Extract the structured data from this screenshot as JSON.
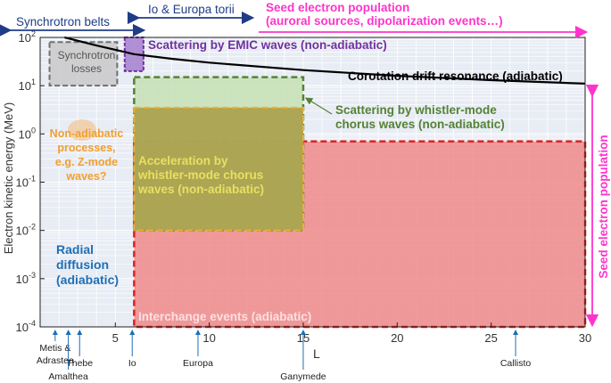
{
  "chart_data": {
    "type": "area",
    "x_axis": {
      "label": "L",
      "ticks": [
        "5",
        "10",
        "15",
        "20",
        "25",
        "30"
      ],
      "range": [
        1,
        30
      ]
    },
    "y_axis": {
      "label": "Electron kinetic energy (MeV)",
      "scale": "log",
      "ticks": [
        "10^{-4}",
        "10^{-3}",
        "10^{-2}",
        "10^{-1}",
        "10^{0}",
        "10^{1}",
        "10^{2}"
      ],
      "range": [
        0.0001,
        100
      ]
    },
    "grid": true,
    "top_annotations": {
      "synchrotron_belts": "Synchrotron belts",
      "io_europa_torii": "Io & Europa torii",
      "seed_population_line1": "Seed electron population",
      "seed_population_line2": "(auroral sources, dipolarization events…)"
    },
    "side_annotation": "Seed electron population",
    "regions": [
      {
        "name": "synchrotron-losses",
        "label_line1": "Synchrotron",
        "label_line2": "losses",
        "L_range": [
          1.5,
          5.1
        ],
        "E_range": [
          10,
          80
        ],
        "color": "#c9c9c9",
        "border": "#707070"
      },
      {
        "name": "emic-scattering",
        "label": "Scattering by EMIC waves (non-adiabatic)",
        "L_range": [
          5.5,
          6.5
        ],
        "E_range": [
          20,
          100
        ],
        "color": "#9b6fc9",
        "border": "#7030a0",
        "label_color": "#7030a0"
      },
      {
        "name": "whistler-scattering",
        "label_line1": "Scattering by whistler-mode",
        "label_line2": "chorus waves (non-adiabatic)",
        "L_range": [
          6,
          15
        ],
        "E_range": [
          0.01,
          15
        ],
        "color": "#c6e0b4",
        "border": "#548235",
        "label_color": "#548235"
      },
      {
        "name": "whistler-acceleration",
        "label_line1": "Acceleration by",
        "label_line2": "whistler-mode chorus",
        "label_line3": "waves (non-adiabatic)",
        "L_range": [
          6,
          15
        ],
        "E_range": [
          0.01,
          3.5
        ],
        "color": "#a8a04a",
        "border": "#f0b030",
        "label_color": "#e8e060"
      },
      {
        "name": "interchange-events",
        "label": "Interchange events (adiabatic)",
        "L_range": [
          6,
          30
        ],
        "E_range": [
          0.0001,
          0.7
        ],
        "color": "#f08a8a",
        "border": "#e02020",
        "label_color": "#fde0e0"
      }
    ],
    "text_labels": {
      "non_adiabatic": [
        "Non-adiabatic",
        "processes,",
        "e.g. Z-mode",
        "waves?"
      ],
      "non_adiabatic_color": "#f0a030",
      "radial_diffusion": [
        "Radial",
        "diffusion",
        "(adiabatic)"
      ],
      "radial_diffusion_color": "#1f6eb5",
      "corotation": "Corotation drift resonance (adiabatic)"
    },
    "corotation_curve": {
      "L": [
        2.3,
        4,
        6,
        8,
        10,
        15,
        20,
        25,
        30
      ],
      "E": [
        100,
        68,
        45,
        36,
        30,
        21,
        16,
        13,
        11
      ]
    },
    "moons": [
      {
        "name": "Metis & Adrastea",
        "L": 1.8
      },
      {
        "name": "Amalthea",
        "L": 2.5
      },
      {
        "name": "Thebe",
        "L": 3.1
      },
      {
        "name": "Io",
        "L": 5.9
      },
      {
        "name": "Europa",
        "L": 9.4
      },
      {
        "name": "Ganymede",
        "L": 15
      },
      {
        "name": "Callisto",
        "L": 26.3
      }
    ],
    "colors": {
      "magenta": "#ff33cc",
      "navy": "#1f3c88",
      "plot_bg": "#e8ecf4",
      "grid": "#ffffff"
    }
  }
}
